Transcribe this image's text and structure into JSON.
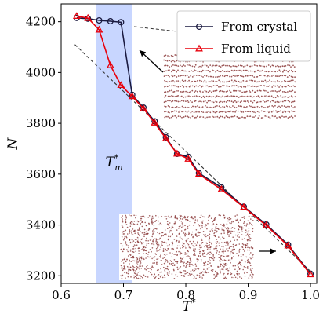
{
  "chart_data": {
    "type": "line",
    "title": "",
    "xlabel": "T*",
    "ylabel": "N",
    "xlim": [
      0.6,
      1.01
    ],
    "ylim": [
      3170,
      4270
    ],
    "xticks": [
      0.6,
      0.7,
      0.8,
      0.9,
      1.0
    ],
    "xtick_labels": [
      "0.6",
      "0.7",
      "0.8",
      "0.9",
      "1.0"
    ],
    "yticks": [
      3200,
      3400,
      3600,
      3800,
      4000,
      4200
    ],
    "ytick_labels": [
      "3200",
      "3400",
      "3600",
      "3800",
      "4000",
      "4200"
    ],
    "grid": false,
    "legend_position": "top-right",
    "series": [
      {
        "name": "From crystal",
        "color": "#1a1a40",
        "marker": "circle",
        "points": [
          [
            0.625,
            4215
          ],
          [
            0.643,
            4212
          ],
          [
            0.661,
            4205
          ],
          [
            0.679,
            4202
          ],
          [
            0.696,
            4198
          ],
          [
            0.714,
            3912
          ],
          [
            0.732,
            3862
          ],
          [
            0.75,
            3808
          ],
          [
            0.768,
            3745
          ],
          [
            0.786,
            3680
          ],
          [
            0.804,
            3668
          ],
          [
            0.821,
            3604
          ],
          [
            0.857,
            3548
          ],
          [
            0.893,
            3472
          ],
          [
            0.929,
            3402
          ],
          [
            0.964,
            3322
          ],
          [
            1.0,
            3208
          ]
        ]
      },
      {
        "name": "From liquid",
        "color": "#e8000b",
        "marker": "triangle",
        "points": [
          [
            0.625,
            4222
          ],
          [
            0.643,
            4214
          ],
          [
            0.661,
            4168
          ],
          [
            0.679,
            4028
          ],
          [
            0.696,
            3950
          ],
          [
            0.714,
            3906
          ],
          [
            0.732,
            3858
          ],
          [
            0.75,
            3802
          ],
          [
            0.768,
            3740
          ],
          [
            0.786,
            3680
          ],
          [
            0.804,
            3660
          ],
          [
            0.821,
            3600
          ],
          [
            0.857,
            3540
          ],
          [
            0.893,
            3470
          ],
          [
            0.929,
            3398
          ],
          [
            0.964,
            3318
          ],
          [
            1.0,
            3205
          ]
        ]
      }
    ],
    "fit_line": {
      "style": "dashed",
      "color": "#333333",
      "points": [
        [
          0.622,
          4110
        ],
        [
          1.003,
          3210
        ]
      ]
    },
    "shaded_band": {
      "x_range": [
        0.656,
        0.714
      ],
      "color": "#c8d6ff",
      "label": "T*m"
    },
    "annotations": {
      "tm_label": {
        "main": "T",
        "superscript": "*",
        "subscript": "m"
      }
    },
    "insets": [
      {
        "name": "crystal-snapshot",
        "style": "layered",
        "color": "#8b3a3a"
      },
      {
        "name": "liquid-snapshot",
        "style": "disordered",
        "color": "#8b3a3a"
      }
    ]
  }
}
